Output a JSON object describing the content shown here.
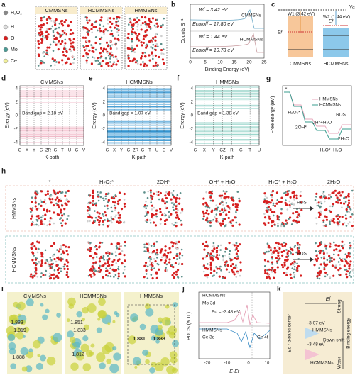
{
  "panels": {
    "a": {
      "label": "a",
      "legend": [
        "H₂O₂",
        "H",
        "O",
        "Mo",
        "Ce"
      ],
      "headers": [
        "CMMSNs",
        "HCMMSNs",
        "HMMSNs"
      ]
    },
    "b": {
      "label": "b",
      "annotations": [
        "Wf = 3.42 eV",
        "Ecutoff = 17.80 eV",
        "CMMSNs",
        "Wf = 1.44 eV",
        "Ecutoff = 19.78 eV",
        "HCMMSNs"
      ],
      "y_label": "Counts S⁻¹",
      "x_label": "Binding Energy (eV)",
      "x_ticks": [
        "0",
        "5",
        "10",
        "15",
        "20",
        "25"
      ]
    },
    "c": {
      "label": "c",
      "vac": "Vac",
      "w1": "W1 (3.42 eV)",
      "w2": "W2 (1.44 eV)",
      "ef": [
        "Ef",
        "Ef"
      ],
      "names": [
        "CMMSNs",
        "HCMMSNs"
      ]
    },
    "d": {
      "label": "d",
      "title": "CMMSNs",
      "band_gap": "Band gap = 2.18 eV",
      "y_label": "Energy (eV)",
      "y_ticks": [
        "4",
        "2",
        "0",
        "-2",
        "-4"
      ],
      "x_ticks": [
        "G",
        "X",
        "Y",
        "G",
        "ZR",
        "G",
        "T",
        "U",
        "G",
        "V"
      ],
      "x_label": "K-path"
    },
    "e": {
      "label": "e",
      "title": "HCMMSNs",
      "band_gap": "Band gap = 1.07 eV",
      "y_label": "Energy (eV)",
      "y_ticks": [
        "4",
        "2",
        "0",
        "-2",
        "-4"
      ],
      "x_ticks": [
        "G",
        "X",
        "Y",
        "G",
        "ZR",
        "G",
        "T",
        "U",
        "G",
        "V"
      ],
      "x_label": "K-path"
    },
    "f": {
      "label": "f",
      "title": "HMMSNs",
      "band_gap": "Band gap = 1.38 eV",
      "y_label": "Energy (eV)",
      "y_ticks": [
        "4",
        "2",
        "0",
        "-2",
        "-4"
      ],
      "x_ticks": [
        "G",
        "X",
        "Y",
        "GZ",
        "R",
        "G",
        "T",
        "U"
      ],
      "x_label": "K-path"
    },
    "g": {
      "label": "g",
      "y_label": "Free energy (eV)",
      "legend": [
        "HMMSNs",
        "HCMMSNs"
      ],
      "steps": [
        "*",
        "H₂O₂*",
        "RDS",
        "OH*+H₂O",
        "2OH*",
        "2H₂O",
        "H₂O*+H₂O"
      ]
    },
    "h": {
      "label": "h",
      "columns": [
        "*",
        "H₂O₂*",
        "2OH*",
        "OH* + H₂O",
        "H₂O* + H₂O",
        "2H₂O"
      ],
      "rows": [
        "HMMSNs",
        "HCMMSNs"
      ],
      "rds": [
        "RDS",
        "RDS"
      ]
    },
    "i": {
      "label": "i",
      "headers": [
        "CMMSNs",
        "HCMMSNs",
        "HMMSNs"
      ],
      "bonds": [
        "1.883",
        "1.819",
        "1.888",
        "1.851",
        "1.833",
        "1.812",
        "1.881",
        "1.833"
      ]
    },
    "j": {
      "label": "j",
      "texts": [
        "HCMMSNs",
        "Mo 3d",
        "Ed = -3.48 eV",
        "HMMSNs",
        "Ce 3d",
        "Ce 4f"
      ],
      "y_label": "PDOS (a. u.)",
      "x_label": "E-Ef",
      "x_ticks": [
        "-20",
        "-10",
        "0",
        "10"
      ]
    },
    "k": {
      "label": "k",
      "texts": [
        "Ef",
        "-3.07 eV",
        "HMMSNs",
        "-3.48 eV",
        "Down shift",
        "HCMMSNs",
        "Ed / d-band center",
        "Binding energy",
        "Strong",
        "Weak"
      ]
    }
  }
}
